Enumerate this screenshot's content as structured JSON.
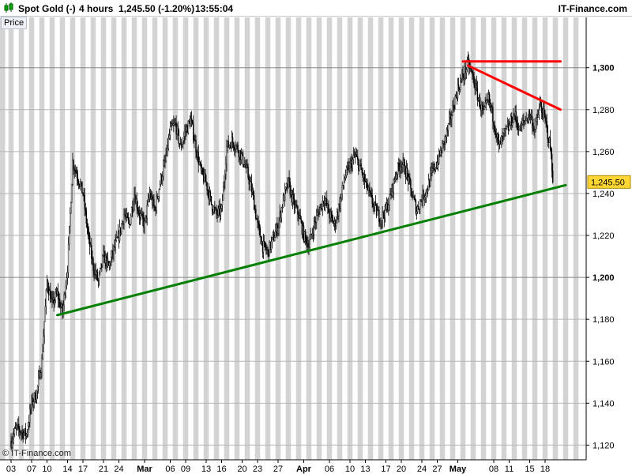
{
  "header": {
    "instrument": "Spot Gold (-)",
    "timeframe": "4 hours",
    "quote": "1,245.50 (-1.20%)",
    "time": "13:55:04",
    "logo": "IT-Finance.com"
  },
  "panel_label": "Price",
  "copyright": "© IT-Finance.com",
  "colors": {
    "band": "#d3d3d3",
    "resistance": "#ff0000",
    "support": "#008000",
    "last_price_bg": "#ffd633",
    "candle": "#000000"
  },
  "chart_data": {
    "type": "candlestick",
    "ylim": [
      1113,
      1324
    ],
    "y_ticks": [
      {
        "label": "1,120",
        "value": 1120
      },
      {
        "label": "1,140",
        "value": 1140
      },
      {
        "label": "1,160",
        "value": 1160
      },
      {
        "label": "1,180",
        "value": 1180
      },
      {
        "label": "1,200",
        "value": 1200,
        "major": true
      },
      {
        "label": "1,220",
        "value": 1220
      },
      {
        "label": "1,240",
        "value": 1240
      },
      {
        "label": "1,260",
        "value": 1260
      },
      {
        "label": "1,280",
        "value": 1280
      },
      {
        "label": "1,300",
        "value": 1300,
        "major": true
      }
    ],
    "x_ticks": [
      {
        "label": "03",
        "day": 0
      },
      {
        "label": "07",
        "day": 4
      },
      {
        "label": "10",
        "day": 7
      },
      {
        "label": "14",
        "day": 11
      },
      {
        "label": "17",
        "day": 14
      },
      {
        "label": "21",
        "day": 18
      },
      {
        "label": "24",
        "day": 21
      },
      {
        "label": "Mar",
        "day": 26,
        "major": true
      },
      {
        "label": "06",
        "day": 31
      },
      {
        "label": "09",
        "day": 34
      },
      {
        "label": "13",
        "day": 38
      },
      {
        "label": "16",
        "day": 41
      },
      {
        "label": "20",
        "day": 45
      },
      {
        "label": "23",
        "day": 48
      },
      {
        "label": "27",
        "day": 52
      },
      {
        "label": "Apr",
        "day": 57,
        "major": true
      },
      {
        "label": "06",
        "day": 62
      },
      {
        "label": "10",
        "day": 66
      },
      {
        "label": "13",
        "day": 69
      },
      {
        "label": "17",
        "day": 73
      },
      {
        "label": "20",
        "day": 76
      },
      {
        "label": "24",
        "day": 80
      },
      {
        "label": "27",
        "day": 83
      },
      {
        "label": "May",
        "day": 87,
        "major": true
      },
      {
        "label": "08",
        "day": 94
      },
      {
        "label": "11",
        "day": 97
      },
      {
        "label": "15",
        "day": 101
      },
      {
        "label": "18",
        "day": 104
      }
    ],
    "last_price": {
      "label": "1,245.50",
      "value": 1245.5
    },
    "path": [
      [
        0,
        1122
      ],
      [
        1,
        1128
      ],
      [
        3,
        1125
      ],
      [
        4,
        1140
      ],
      [
        5,
        1145
      ],
      [
        6,
        1160
      ],
      [
        7,
        1198
      ],
      [
        8,
        1187
      ],
      [
        9,
        1192
      ],
      [
        10,
        1183
      ],
      [
        11,
        1205
      ],
      [
        12,
        1255
      ],
      [
        13,
        1248
      ],
      [
        14,
        1240
      ],
      [
        15,
        1220
      ],
      [
        16,
        1205
      ],
      [
        17,
        1198
      ],
      [
        18,
        1210
      ],
      [
        19,
        1205
      ],
      [
        20,
        1213
      ],
      [
        21,
        1220
      ],
      [
        22,
        1230
      ],
      [
        23,
        1225
      ],
      [
        24,
        1240
      ],
      [
        25,
        1230
      ],
      [
        26,
        1225
      ],
      [
        27,
        1240
      ],
      [
        28,
        1232
      ],
      [
        29,
        1245
      ],
      [
        30,
        1255
      ],
      [
        31,
        1270
      ],
      [
        32,
        1273
      ],
      [
        33,
        1262
      ],
      [
        34,
        1270
      ],
      [
        35,
        1275
      ],
      [
        36,
        1262
      ],
      [
        37,
        1250
      ],
      [
        38,
        1245
      ],
      [
        39,
        1235
      ],
      [
        40,
        1230
      ],
      [
        41,
        1232
      ],
      [
        42,
        1262
      ],
      [
        43,
        1265
      ],
      [
        44,
        1262
      ],
      [
        45,
        1257
      ],
      [
        46,
        1250
      ],
      [
        47,
        1240
      ],
      [
        48,
        1225
      ],
      [
        49,
        1215
      ],
      [
        50,
        1212
      ],
      [
        51,
        1218
      ],
      [
        52,
        1225
      ],
      [
        53,
        1237
      ],
      [
        54,
        1245
      ],
      [
        55,
        1235
      ],
      [
        56,
        1230
      ],
      [
        57,
        1220
      ],
      [
        58,
        1215
      ],
      [
        59,
        1225
      ],
      [
        60,
        1232
      ],
      [
        61,
        1238
      ],
      [
        62,
        1230
      ],
      [
        63,
        1225
      ],
      [
        64,
        1235
      ],
      [
        65,
        1248
      ],
      [
        66,
        1253
      ],
      [
        67,
        1258
      ],
      [
        68,
        1252
      ],
      [
        69,
        1245
      ],
      [
        70,
        1238
      ],
      [
        71,
        1232
      ],
      [
        72,
        1228
      ],
      [
        73,
        1232
      ],
      [
        74,
        1240
      ],
      [
        75,
        1250
      ],
      [
        76,
        1255
      ],
      [
        77,
        1250
      ],
      [
        78,
        1240
      ],
      [
        79,
        1232
      ],
      [
        80,
        1238
      ],
      [
        81,
        1242
      ],
      [
        82,
        1250
      ],
      [
        83,
        1255
      ],
      [
        84,
        1262
      ],
      [
        85,
        1270
      ],
      [
        86,
        1280
      ],
      [
        87,
        1290
      ],
      [
        88,
        1296
      ],
      [
        89,
        1302
      ],
      [
        90,
        1295
      ],
      [
        91,
        1285
      ],
      [
        92,
        1278
      ],
      [
        93,
        1285
      ],
      [
        94,
        1275
      ],
      [
        95,
        1262
      ],
      [
        96,
        1268
      ],
      [
        97,
        1272
      ],
      [
        98,
        1278
      ],
      [
        99,
        1270
      ],
      [
        100,
        1275
      ],
      [
        101,
        1278
      ],
      [
        102,
        1270
      ],
      [
        103,
        1282
      ],
      [
        104,
        1275
      ],
      [
        105,
        1262
      ],
      [
        105.6,
        1245.5
      ]
    ],
    "resistance_lines": [
      {
        "points": [
          [
            88,
            1303
          ],
          [
            107,
            1303
          ]
        ]
      },
      {
        "points": [
          [
            89,
            1301
          ],
          [
            107,
            1280
          ]
        ]
      }
    ],
    "support_line": {
      "points": [
        [
          9,
          1182
        ],
        [
          108,
          1244
        ]
      ]
    }
  }
}
